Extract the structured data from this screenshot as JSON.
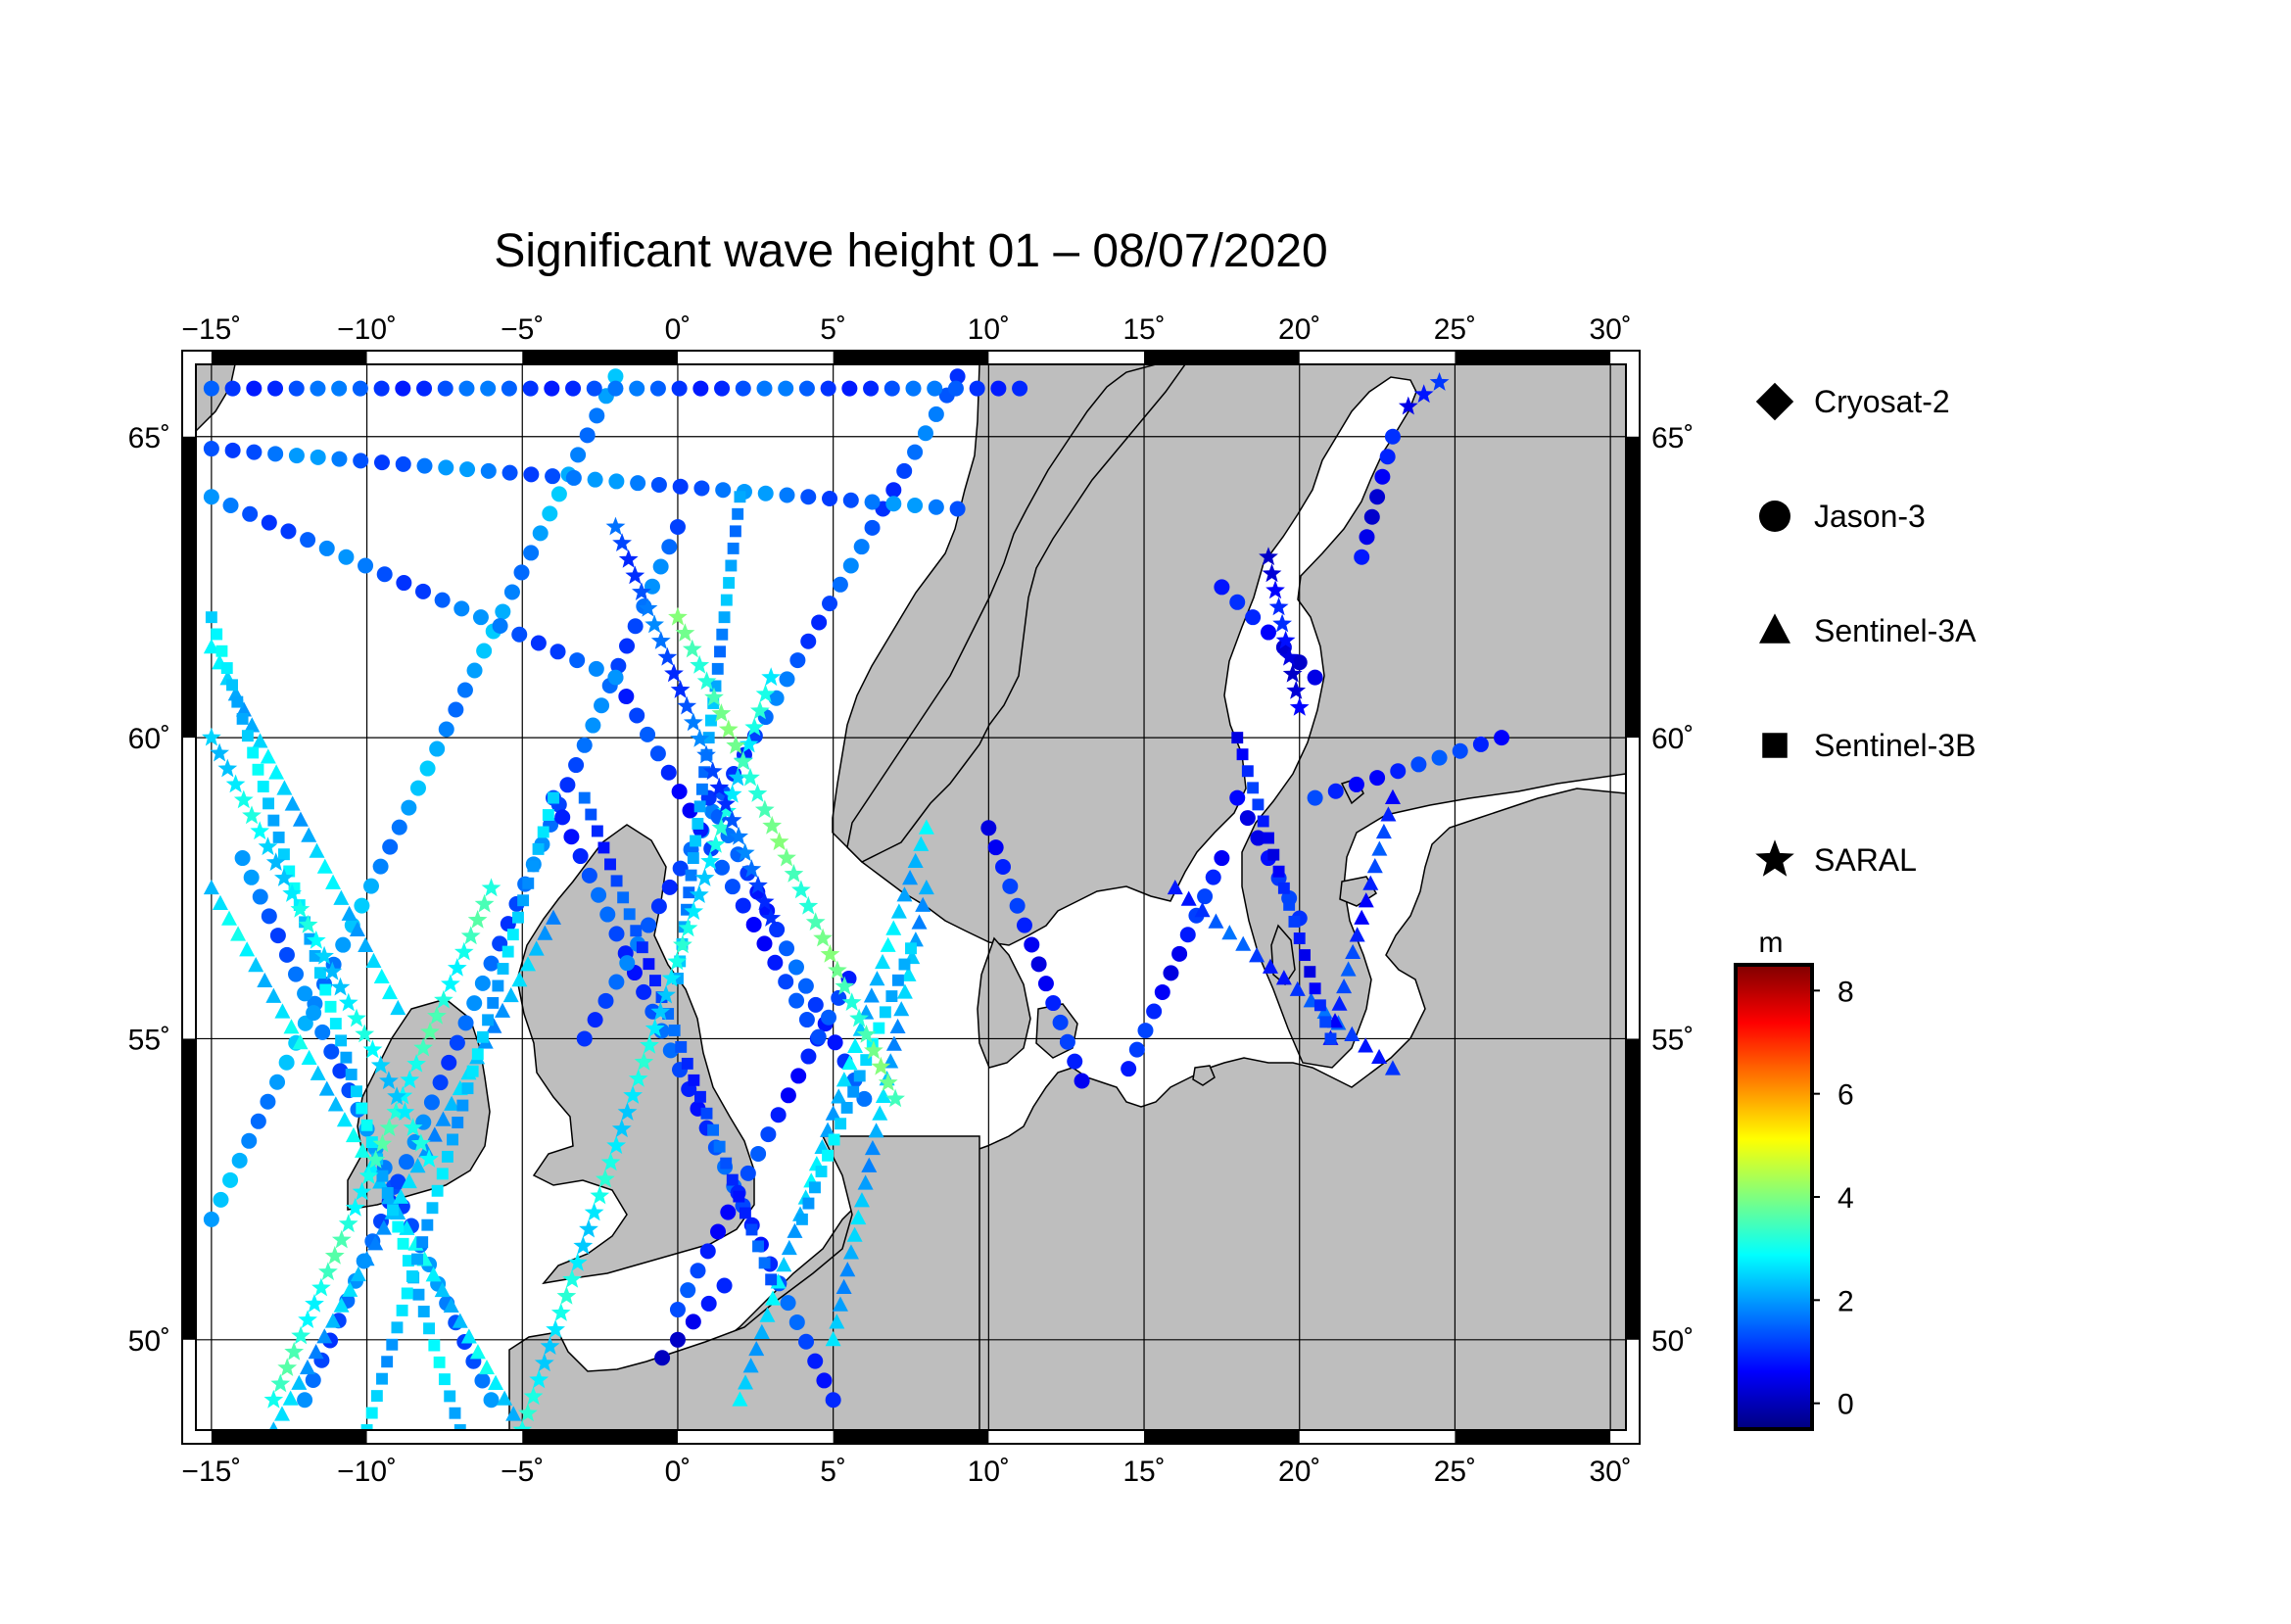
{
  "title": "Significant wave height 01 – 08/07/2020",
  "map": {
    "lon_range": [
      -15.5,
      30.5
    ],
    "lat_range": [
      48.5,
      66.2
    ],
    "lon_ticks": [
      -15,
      -10,
      -5,
      0,
      5,
      10,
      15,
      20,
      25,
      30
    ],
    "lat_ticks": [
      50,
      55,
      60,
      65
    ],
    "lon_labels": [
      "−15˚",
      "−10˚",
      "−5˚",
      "0˚",
      "5˚",
      "10˚",
      "15˚",
      "20˚",
      "25˚",
      "30˚"
    ],
    "lat_labels": [
      "50˚",
      "55˚",
      "60˚",
      "65˚"
    ],
    "land_color": "#bebebe",
    "sea_color": "#ffffff",
    "grid": true
  },
  "legend": {
    "items": [
      {
        "label": "Cryosat-2",
        "marker": "diamond"
      },
      {
        "label": "Jason-3",
        "marker": "circle"
      },
      {
        "label": "Sentinel-3A",
        "marker": "triangle"
      },
      {
        "label": "Sentinel-3B",
        "marker": "square"
      },
      {
        "label": "SARAL",
        "marker": "star"
      }
    ]
  },
  "colorbar": {
    "unit": "m",
    "range": [
      -0.5,
      8.5
    ],
    "ticks": [
      0,
      2,
      4,
      6,
      8
    ],
    "tick_labels": [
      "0",
      "2",
      "4",
      "6",
      "8"
    ],
    "colormap": [
      "#00007f",
      "#0000ff",
      "#007fff",
      "#00ffff",
      "#7fff7f",
      "#ffff00",
      "#ff7f00",
      "#ff0000",
      "#7f0000"
    ]
  },
  "chart_data": {
    "type": "scatter",
    "value_unit": "m",
    "tracks": [
      {
        "satellite": "Jason-3",
        "marker": "circle",
        "from": [
          -15,
          52.0
        ],
        "to": [
          -2,
          66.0
        ],
        "swh": 2.0
      },
      {
        "satellite": "Jason-3",
        "marker": "circle",
        "from": [
          -14,
          58.0
        ],
        "to": [
          -6,
          49.0
        ],
        "swh": 1.6
      },
      {
        "satellite": "Jason-3",
        "marker": "circle",
        "from": [
          -12,
          49.0
        ],
        "to": [
          0,
          63.5
        ],
        "swh": 1.5
      },
      {
        "satellite": "Jason-3",
        "marker": "circle",
        "from": [
          -4,
          59.0
        ],
        "to": [
          5,
          49.0
        ],
        "swh": 1.2
      },
      {
        "satellite": "Jason-3",
        "marker": "circle",
        "from": [
          -3,
          55.0
        ],
        "to": [
          9,
          66.0
        ],
        "swh": 1.4
      },
      {
        "satellite": "Jason-3",
        "marker": "circle",
        "from": [
          -2,
          61.0
        ],
        "to": [
          4.5,
          55.0
        ],
        "swh": 1.0
      },
      {
        "satellite": "Jason-3",
        "marker": "circle",
        "from": [
          1,
          59.0
        ],
        "to": [
          6,
          54.0
        ],
        "swh": 1.2
      },
      {
        "satellite": "Jason-3",
        "marker": "circle",
        "from": [
          0,
          50.5
        ],
        "to": [
          5.5,
          56.0
        ],
        "swh": 1.0
      },
      {
        "satellite": "Jason-3",
        "marker": "circle",
        "from": [
          -15,
          64.0
        ],
        "to": [
          -2,
          61.0
        ],
        "swh": 1.5
      },
      {
        "satellite": "Jason-3",
        "marker": "circle",
        "from": [
          -15,
          65.8
        ],
        "to": [
          11,
          65.8
        ],
        "swh": 1.3
      },
      {
        "satellite": "Jason-3",
        "marker": "circle",
        "from": [
          -15,
          64.8
        ],
        "to": [
          9,
          63.8
        ],
        "swh": 1.6
      },
      {
        "satellite": "Jason-3",
        "marker": "circle",
        "from": [
          10,
          58.5
        ],
        "to": [
          13,
          54.3
        ],
        "swh": 0.8
      },
      {
        "satellite": "Jason-3",
        "marker": "circle",
        "from": [
          17.5,
          58.0
        ],
        "to": [
          14.5,
          54.5
        ],
        "swh": 0.8
      },
      {
        "satellite": "Jason-3",
        "marker": "circle",
        "from": [
          17.5,
          62.5
        ],
        "to": [
          20.5,
          61.0
        ],
        "swh": 0.6
      },
      {
        "satellite": "Jason-3",
        "marker": "circle",
        "from": [
          23,
          65.0
        ],
        "to": [
          22,
          63.0
        ],
        "swh": 0.6
      },
      {
        "satellite": "Jason-3",
        "marker": "circle",
        "from": [
          20.5,
          59.0
        ],
        "to": [
          26.5,
          60.0
        ],
        "swh": 1.0
      },
      {
        "satellite": "Jason-3",
        "marker": "circle",
        "from": [
          18,
          59.0
        ],
        "to": [
          20,
          57.0
        ],
        "swh": 0.8
      },
      {
        "satellite": "Jason-3",
        "marker": "circle",
        "from": [
          -0.5,
          49.7
        ],
        "to": [
          1.5,
          50.9
        ],
        "swh": 0.5
      },
      {
        "satellite": "Sentinel-3A",
        "marker": "triangle",
        "from": [
          -15,
          57.5
        ],
        "to": [
          -5,
          48.5
        ],
        "swh": 2.6
      },
      {
        "satellite": "Sentinel-3A",
        "marker": "triangle",
        "from": [
          -13,
          48.5
        ],
        "to": [
          -4,
          57.0
        ],
        "swh": 2.2
      },
      {
        "satellite": "Sentinel-3A",
        "marker": "triangle",
        "from": [
          -15,
          61.5
        ],
        "to": [
          -9,
          55.5
        ],
        "swh": 2.4
      },
      {
        "satellite": "Sentinel-3A",
        "marker": "triangle",
        "from": [
          2,
          49.0
        ],
        "to": [
          8,
          58.5
        ],
        "swh": 2.4
      },
      {
        "satellite": "Sentinel-3A",
        "marker": "triangle",
        "from": [
          8,
          57.5
        ],
        "to": [
          5,
          50.0
        ],
        "swh": 2.2
      },
      {
        "satellite": "Sentinel-3A",
        "marker": "triangle",
        "from": [
          16,
          57.5
        ],
        "to": [
          23,
          54.5
        ],
        "swh": 1.2
      },
      {
        "satellite": "Sentinel-3A",
        "marker": "triangle",
        "from": [
          23,
          59.0
        ],
        "to": [
          21,
          55.0
        ],
        "swh": 1.0
      },
      {
        "satellite": "Sentinel-3B",
        "marker": "square",
        "from": [
          -15,
          62.0
        ],
        "to": [
          -7,
          48.5
        ],
        "swh": 2.5
      },
      {
        "satellite": "Sentinel-3B",
        "marker": "square",
        "from": [
          -10,
          48.5
        ],
        "to": [
          -4,
          59.0
        ],
        "swh": 2.3
      },
      {
        "satellite": "Sentinel-3B",
        "marker": "square",
        "from": [
          -3,
          59.0
        ],
        "to": [
          3,
          51.0
        ],
        "swh": 1.2
      },
      {
        "satellite": "Sentinel-3B",
        "marker": "square",
        "from": [
          2,
          64.0
        ],
        "to": [
          0,
          56.0
        ],
        "swh": 2.0
      },
      {
        "satellite": "Sentinel-3B",
        "marker": "square",
        "from": [
          4,
          52.0
        ],
        "to": [
          7.5,
          56.5
        ],
        "swh": 2.4
      },
      {
        "satellite": "Sentinel-3B",
        "marker": "square",
        "from": [
          18,
          60.0
        ],
        "to": [
          21,
          55.0
        ],
        "swh": 0.8
      },
      {
        "satellite": "SARAL",
        "marker": "star",
        "from": [
          -13,
          49.0
        ],
        "to": [
          -6,
          57.5
        ],
        "swh": 3.2
      },
      {
        "satellite": "SARAL",
        "marker": "star",
        "from": [
          -5,
          48.5
        ],
        "to": [
          3,
          61.0
        ],
        "swh": 2.8
      },
      {
        "satellite": "SARAL",
        "marker": "star",
        "from": [
          0,
          62.0
        ],
        "to": [
          7,
          54.0
        ],
        "swh": 3.6
      },
      {
        "satellite": "SARAL",
        "marker": "star",
        "from": [
          -2,
          63.5
        ],
        "to": [
          3,
          57.0
        ],
        "swh": 1.4
      },
      {
        "satellite": "SARAL",
        "marker": "star",
        "from": [
          -15,
          60.0
        ],
        "to": [
          -8,
          53.0
        ],
        "swh": 2.7
      },
      {
        "satellite": "SARAL",
        "marker": "star",
        "from": [
          19,
          63.0
        ],
        "to": [
          20,
          60.5
        ],
        "swh": 0.6
      },
      {
        "satellite": "SARAL",
        "marker": "star",
        "from": [
          23.5,
          65.5
        ],
        "to": [
          24.5,
          65.9
        ],
        "swh": 0.7
      }
    ]
  }
}
